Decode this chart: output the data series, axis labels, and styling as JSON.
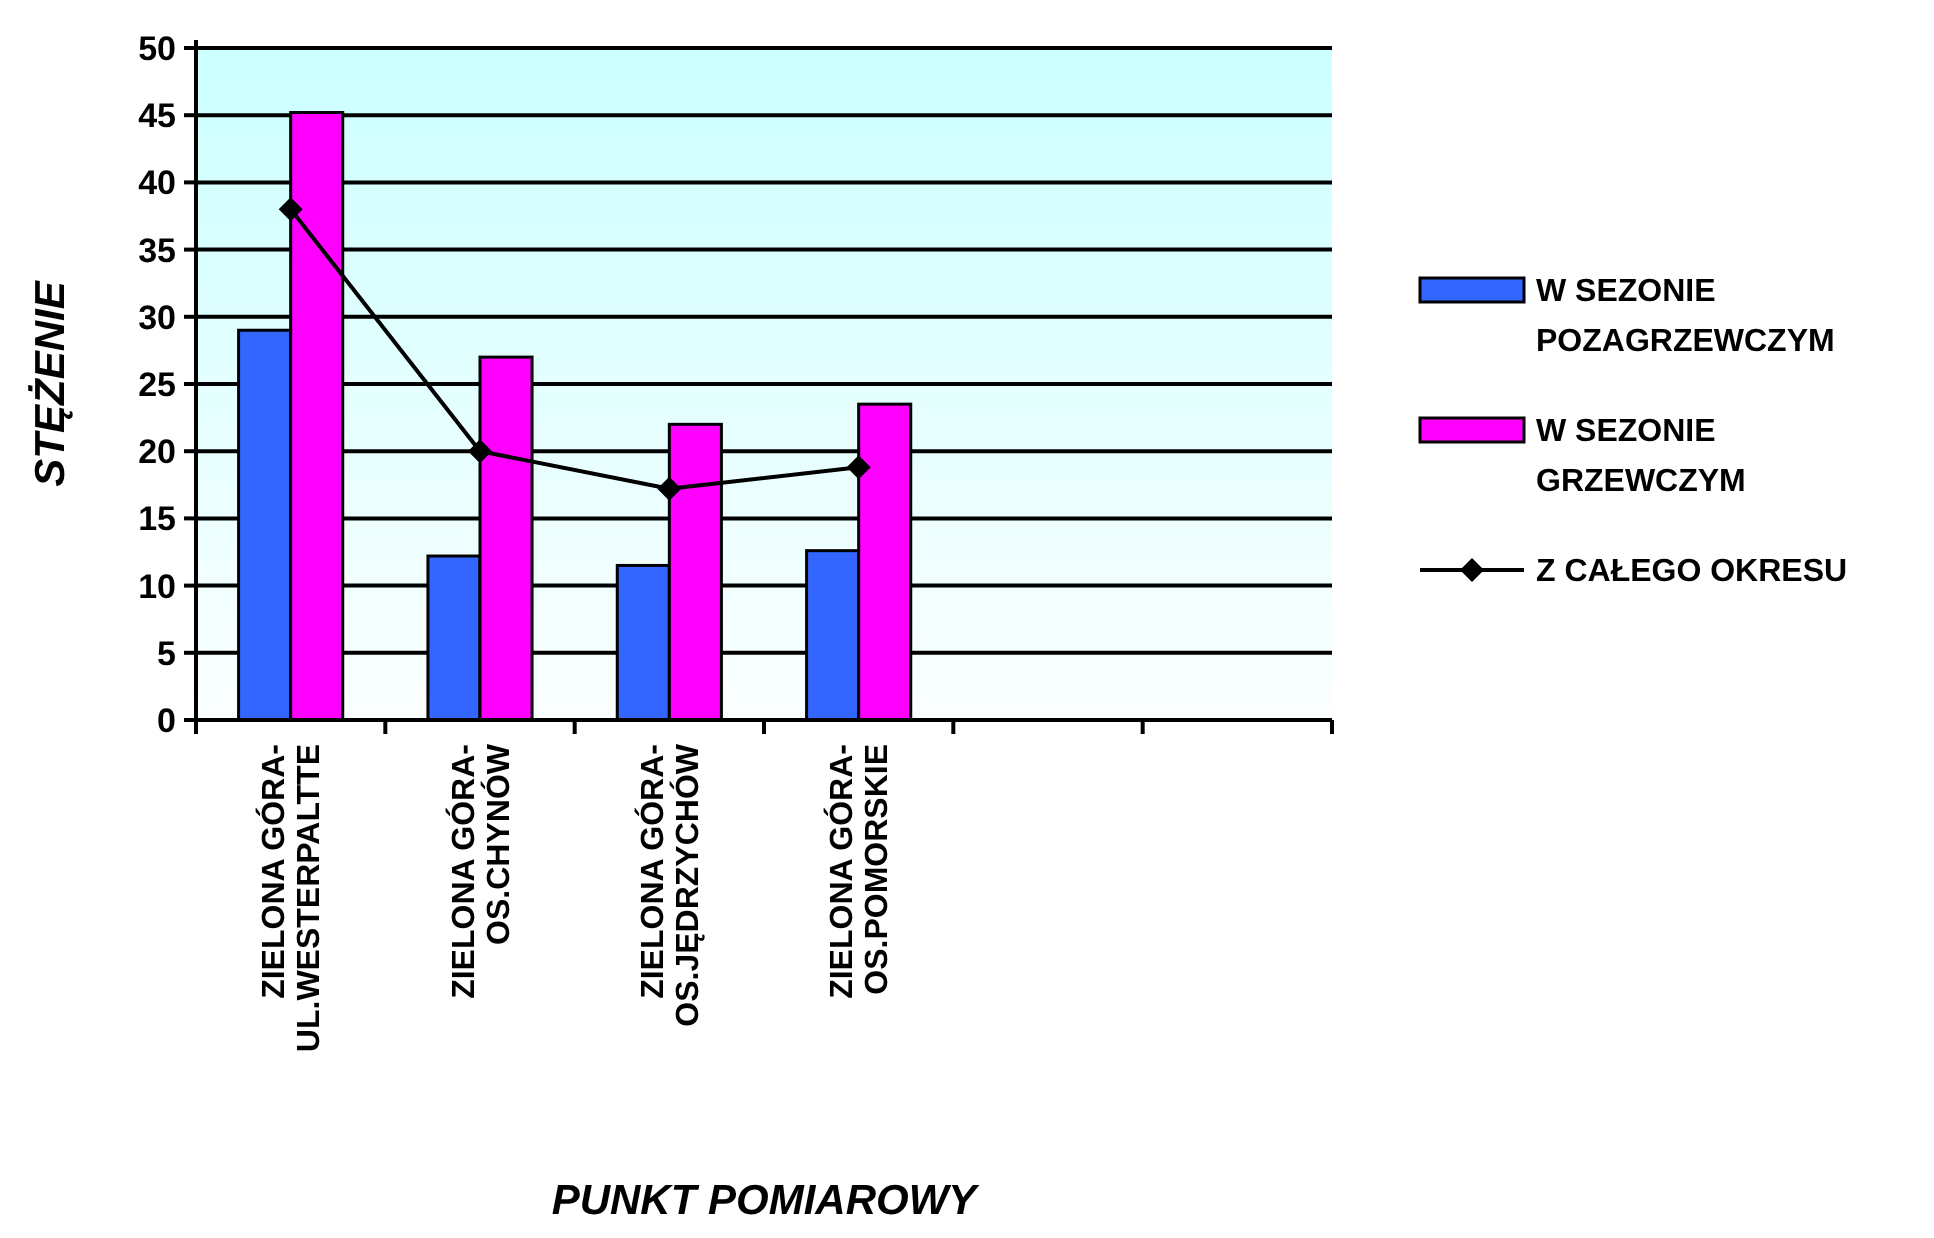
{
  "chart_data": {
    "type": "bar",
    "xlabel": "PUNKT POMIAROWY",
    "ylabel": "STĘŻENIE",
    "categories": [
      "ZIELONA GÓRA-\nUL.WESTERPALTTE",
      "ZIELONA GÓRA-\nOS.CHYNÓW",
      "ZIELONA GÓRA-\nOS.JĘDRZYCHÓW",
      "ZIELONA GÓRA-\nOS.POMORSKIE",
      null,
      null
    ],
    "series": [
      {
        "name": "W SEZONIE\nPOZAGRZEWCZYM",
        "color": "#3366ff",
        "values": [
          29,
          12.2,
          11.5,
          12.6,
          null,
          null
        ]
      },
      {
        "name": "W SEZONIE\nGRZEWCZYM",
        "color": "#ff00ff",
        "values": [
          45.2,
          27,
          22,
          23.5,
          null,
          null
        ]
      },
      {
        "name": "Z CAŁEGO OKRESU",
        "type": "line",
        "color": "#000000",
        "marker": "diamond",
        "values": [
          38,
          20,
          17.2,
          18.8,
          null,
          null
        ]
      }
    ],
    "ylim": [
      0,
      50
    ],
    "yticks": [
      0,
      5,
      10,
      15,
      20,
      25,
      30,
      35,
      40,
      45,
      50
    ],
    "grid": "y",
    "legend": "right"
  }
}
